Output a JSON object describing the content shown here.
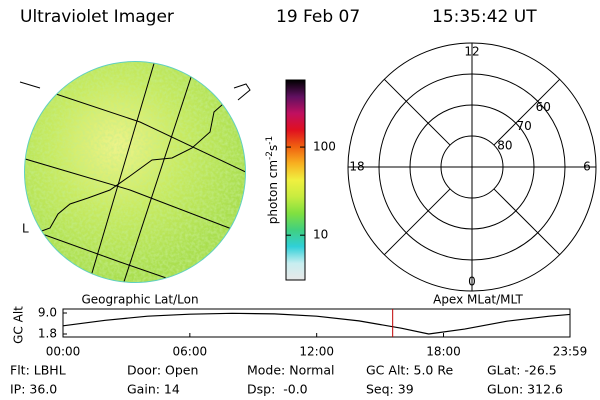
{
  "header": {
    "title": "Ultraviolet Imager",
    "date": "19 Feb 07",
    "time": "15:35:42 UT"
  },
  "image_panel": {
    "caption": "Geographic Lat/Lon"
  },
  "colorbar": {
    "label_parts": [
      "photon cm",
      "-2",
      "s",
      "-1"
    ],
    "log": true,
    "clim": [
      3.1,
      577
    ],
    "ticks": [
      10,
      100
    ],
    "colors": [
      "#e8e8e8",
      "#c8eef0",
      "#30d0d8",
      "#40d080",
      "#80e040",
      "#c8ec40",
      "#f0f040",
      "#f8b020",
      "#f06010",
      "#e01020",
      "#c01060",
      "#601060",
      "#000000"
    ]
  },
  "polar": {
    "caption": "Apex MLat/MLT",
    "rlim": [
      90,
      50
    ],
    "rings": [
      60,
      70,
      80
    ],
    "mlt_ticks": [
      12,
      18,
      6,
      0
    ]
  },
  "timeline": {
    "ylabel": "GC Alt",
    "ylim": [
      1.8,
      9.0
    ],
    "yticks": [
      {
        "value": 9.0,
        "label": "9.0"
      },
      {
        "value": 1.8,
        "label": "1.8"
      }
    ],
    "xlim": [
      0,
      23.983
    ],
    "xticks": [
      {
        "value": 0,
        "label": "00:00"
      },
      {
        "value": 6,
        "label": "06:00"
      },
      {
        "value": 12,
        "label": "12:00"
      },
      {
        "value": 18,
        "label": "18:00"
      },
      {
        "value": 23.983,
        "label": "23:59"
      }
    ],
    "x": [
      0,
      2,
      4,
      6,
      8,
      10,
      12,
      14,
      16,
      17.3,
      19,
      21,
      23,
      23.983
    ],
    "values": [
      4.6,
      6.5,
      7.9,
      8.6,
      8.9,
      8.7,
      7.9,
      6.3,
      3.8,
      1.8,
      3.5,
      6.2,
      7.9,
      8.5
    ],
    "color": "#000000",
    "marker": 15.595,
    "marker_color": "#c00000"
  },
  "footer": [
    [
      "Flt: LBHL",
      "Door: Open",
      "Mode: Normal",
      "GC Alt: 5.0 Re",
      "GLat: -26.5"
    ],
    [
      "IP: 36.0",
      "Gain: 14",
      "Dsp:  -0.0",
      "Seq: 39",
      "GLon: 312.6"
    ]
  ]
}
